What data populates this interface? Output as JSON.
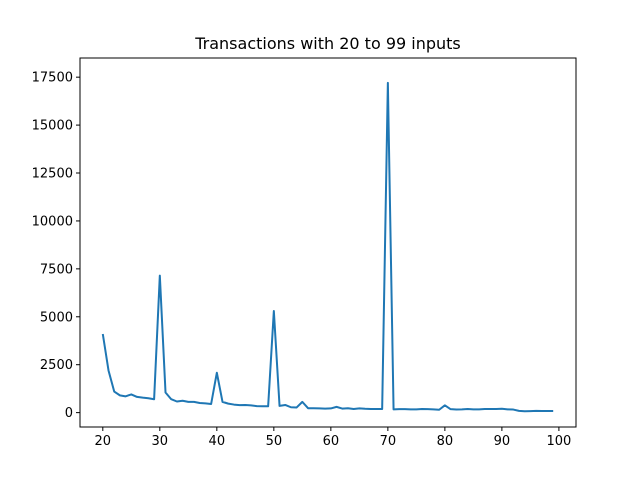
{
  "chart_data": {
    "type": "line",
    "title": "Transactions with 20 to 99 inputs",
    "xlabel": "",
    "ylabel": "",
    "xlim": [
      16,
      103
    ],
    "ylim": [
      -750,
      18500
    ],
    "xticks": [
      20,
      30,
      40,
      50,
      60,
      70,
      80,
      90,
      100
    ],
    "yticks": [
      0,
      2500,
      5000,
      7500,
      10000,
      12500,
      15000,
      17500
    ],
    "grid": false,
    "legend": "none",
    "series": [
      {
        "color": "#1f77b4",
        "x": [
          20,
          21,
          22,
          23,
          24,
          25,
          26,
          27,
          28,
          29,
          30,
          31,
          32,
          33,
          34,
          35,
          36,
          37,
          38,
          39,
          40,
          41,
          42,
          43,
          44,
          45,
          46,
          47,
          48,
          49,
          50,
          51,
          52,
          53,
          54,
          55,
          56,
          57,
          58,
          59,
          60,
          61,
          62,
          63,
          64,
          65,
          66,
          67,
          68,
          69,
          70,
          71,
          72,
          73,
          74,
          75,
          76,
          77,
          78,
          79,
          80,
          81,
          82,
          83,
          84,
          85,
          86,
          87,
          88,
          89,
          90,
          91,
          92,
          93,
          94,
          95,
          96,
          97,
          98,
          99
        ],
        "y": [
          4100,
          2200,
          1100,
          900,
          850,
          950,
          820,
          780,
          750,
          700,
          7150,
          1050,
          700,
          580,
          620,
          560,
          560,
          500,
          480,
          450,
          2080,
          560,
          470,
          420,
          390,
          400,
          380,
          340,
          330,
          330,
          5300,
          350,
          400,
          280,
          270,
          560,
          230,
          230,
          220,
          210,
          220,
          300,
          210,
          230,
          190,
          220,
          200,
          190,
          190,
          190,
          17200,
          170,
          180,
          180,
          170,
          170,
          190,
          180,
          170,
          150,
          380,
          180,
          160,
          170,
          190,
          170,
          170,
          190,
          190,
          190,
          200,
          170,
          160,
          90,
          70,
          80,
          90,
          85,
          85,
          85
        ]
      }
    ]
  }
}
